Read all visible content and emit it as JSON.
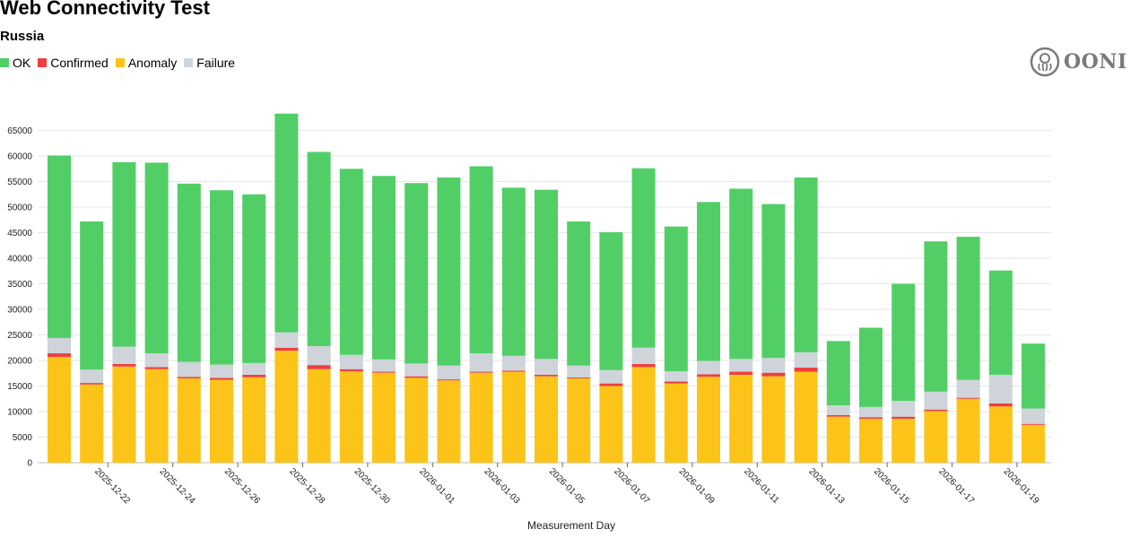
{
  "header": {
    "title": "Web Connectivity Test",
    "subtitle": "Russia"
  },
  "logo": {
    "text": "OONI",
    "icon": "ooni-octopus-icon"
  },
  "legend": [
    {
      "label": "OK",
      "color": "#51cf66"
    },
    {
      "label": "Confirmed",
      "color": "#f03e3e"
    },
    {
      "label": "Anomaly",
      "color": "#fcc419"
    },
    {
      "label": "Failure",
      "color": "#ced4da"
    }
  ],
  "chart_data": {
    "type": "bar",
    "stacked": true,
    "xlabel": "Measurement Day",
    "ylabel": "",
    "ylim": [
      0,
      70000
    ],
    "yticks": [
      0,
      5000,
      10000,
      15000,
      20000,
      25000,
      30000,
      35000,
      40000,
      45000,
      50000,
      55000,
      60000,
      65000
    ],
    "grid": true,
    "categories": [
      "2025-12-21",
      "2025-12-22",
      "2025-12-23",
      "2025-12-24",
      "2025-12-25",
      "2025-12-26",
      "2025-12-27",
      "2025-12-28",
      "2025-12-29",
      "2025-12-30",
      "2025-12-31",
      "2026-01-01",
      "2026-01-02",
      "2026-01-03",
      "2026-01-04",
      "2026-01-05",
      "2026-01-06",
      "2026-01-07",
      "2026-01-08",
      "2026-01-09",
      "2026-01-10",
      "2026-01-11",
      "2026-01-12",
      "2026-01-13",
      "2026-01-14",
      "2026-01-15",
      "2026-01-16",
      "2026-01-17",
      "2026-01-18",
      "2026-01-19",
      "2026-01-20"
    ],
    "tick_labels": [
      "2025-12-22",
      "2025-12-24",
      "2025-12-26",
      "2025-12-28",
      "2025-12-30",
      "2026-01-01",
      "2026-01-03",
      "2026-01-05",
      "2026-01-07",
      "2026-01-09",
      "2026-01-11",
      "2026-01-13",
      "2026-01-15",
      "2026-01-17",
      "2026-01-19"
    ],
    "series": [
      {
        "name": "Anomaly",
        "color": "#fcc419",
        "values": [
          20700,
          15300,
          18800,
          18300,
          16500,
          16200,
          16700,
          21900,
          18300,
          17900,
          17600,
          16600,
          16100,
          17600,
          17800,
          16900,
          16500,
          15000,
          18700,
          15500,
          16800,
          17200,
          16900,
          17800,
          9000,
          8600,
          8600,
          10100,
          12500,
          11000,
          7400
        ]
      },
      {
        "name": "Confirmed",
        "color": "#f03e3e",
        "values": [
          700,
          300,
          500,
          400,
          300,
          400,
          500,
          600,
          800,
          400,
          200,
          300,
          200,
          200,
          200,
          300,
          200,
          500,
          600,
          400,
          500,
          600,
          700,
          800,
          300,
          300,
          400,
          300,
          200,
          600,
          200
        ]
      },
      {
        "name": "Failure",
        "color": "#ced4da",
        "values": [
          3000,
          2600,
          3400,
          2700,
          2900,
          2600,
          2300,
          3000,
          3700,
          2800,
          2400,
          2500,
          2700,
          3600,
          2900,
          3100,
          2300,
          2600,
          3200,
          2000,
          2600,
          2500,
          2900,
          3000,
          1900,
          2000,
          3100,
          3500,
          3500,
          5600,
          3000
        ]
      },
      {
        "name": "OK",
        "color": "#51cf66",
        "values": [
          35700,
          29000,
          36100,
          37300,
          34900,
          34100,
          33000,
          42800,
          38000,
          36400,
          35900,
          35300,
          36800,
          36600,
          32900,
          33100,
          28200,
          27000,
          35100,
          28300,
          31100,
          33300,
          30100,
          34200,
          12600,
          15500,
          22900,
          29400,
          28000,
          20400,
          12700
        ]
      }
    ]
  }
}
